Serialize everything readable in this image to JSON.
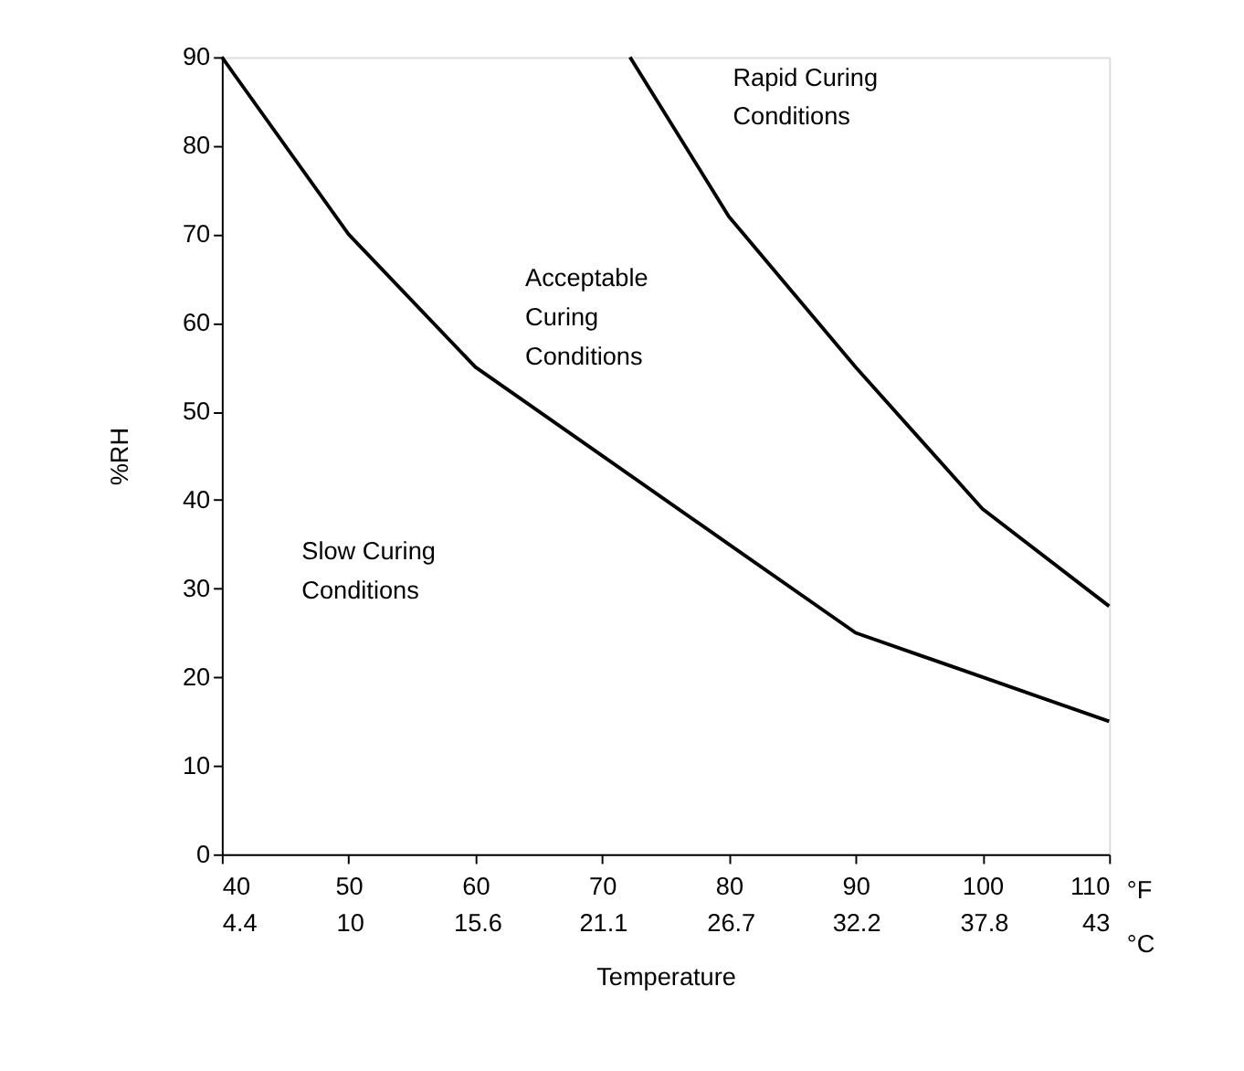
{
  "chart_data": {
    "type": "line",
    "xlabel": "Temperature",
    "ylabel": "%RH",
    "xlim": [
      40,
      110
    ],
    "xticks": [
      40,
      50,
      60,
      70,
      80,
      90,
      100,
      110
    ],
    "x2lim": [
      4.4,
      43.3
    ],
    "x2ticks": [
      4.4,
      10,
      15.6,
      21.1,
      26.7,
      32.2,
      37.8,
      {
        "value": 43.3,
        "label": "43"
      }
    ],
    "ylim": [
      0,
      90
    ],
    "yticks": [
      0,
      10,
      20,
      30,
      40,
      50,
      60,
      70,
      80,
      90
    ],
    "grid": false,
    "marker": "none",
    "line_style": "solid",
    "series": [
      {
        "color": "#000000",
        "x": [
          40,
          50,
          60,
          70,
          80,
          90,
          100,
          110
        ],
        "values": [
          90,
          70,
          55,
          45,
          35,
          25,
          20,
          15
        ]
      },
      {
        "color": "#000000",
        "x": [
          72.2,
          80,
          90,
          100,
          110
        ],
        "values": [
          90,
          72,
          55,
          39,
          28
        ]
      }
    ],
    "annotations": [
      "Rapid Curing\nConditions",
      "Acceptable\nCuring\nConditions",
      "Slow Curing\nConditions",
      "°F",
      "°C"
    ]
  }
}
